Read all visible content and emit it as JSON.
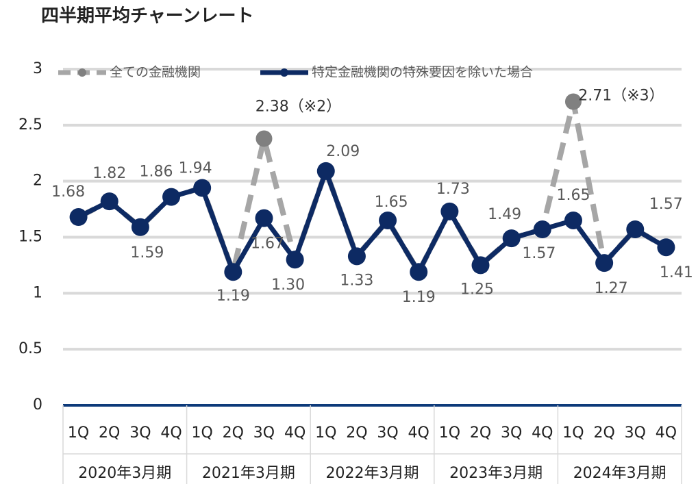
{
  "chart_data": {
    "type": "line",
    "title": "四半期平均チャーンレート",
    "categories": [
      "1Q",
      "2Q",
      "3Q",
      "4Q",
      "1Q",
      "2Q",
      "3Q",
      "4Q",
      "1Q",
      "2Q",
      "3Q",
      "4Q",
      "1Q",
      "2Q",
      "3Q",
      "4Q",
      "1Q",
      "2Q",
      "3Q",
      "4Q"
    ],
    "groups": [
      "2020年3月期",
      "2021年3月期",
      "2022年3月期",
      "2023年3月期",
      "2024年3月期"
    ],
    "series": [
      {
        "name": "全ての金融機関",
        "color": "#a6a6a6",
        "marker_color": "#808080",
        "dashed": true,
        "values": [
          1.68,
          1.82,
          1.59,
          1.86,
          1.94,
          1.19,
          2.38,
          1.3,
          2.09,
          1.33,
          1.65,
          1.19,
          1.73,
          1.25,
          1.49,
          1.57,
          2.71,
          1.27,
          1.57,
          1.41
        ],
        "value_labels": [
          null,
          null,
          null,
          null,
          null,
          null,
          "2.38（※2）",
          null,
          null,
          null,
          null,
          null,
          null,
          null,
          null,
          null,
          "2.71（※3）",
          null,
          null,
          null
        ]
      },
      {
        "name": "特定金融機関の特殊要因を除いた場合",
        "color": "#0d2a63",
        "marker_color": "#0d2a63",
        "dashed": false,
        "values": [
          1.68,
          1.82,
          1.59,
          1.86,
          1.94,
          1.19,
          1.67,
          1.3,
          2.09,
          1.33,
          1.65,
          1.19,
          1.73,
          1.25,
          1.49,
          1.57,
          1.65,
          1.27,
          1.57,
          1.41
        ],
        "value_labels": [
          "1.68",
          "1.82",
          "1.59",
          "1.86",
          "1.94",
          "1.19",
          "1.67",
          "1.30",
          "2.09",
          "1.33",
          "1.65",
          "1.19",
          "1.73",
          "1.25",
          "1.49",
          "1.57",
          "1.65",
          "1.27",
          "1.57",
          "1.41"
        ]
      }
    ],
    "ylim": [
      0,
      3
    ],
    "yticks": [
      0,
      0.5,
      1,
      1.5,
      2,
      2.5,
      3
    ],
    "grid": true,
    "legend": "top"
  }
}
